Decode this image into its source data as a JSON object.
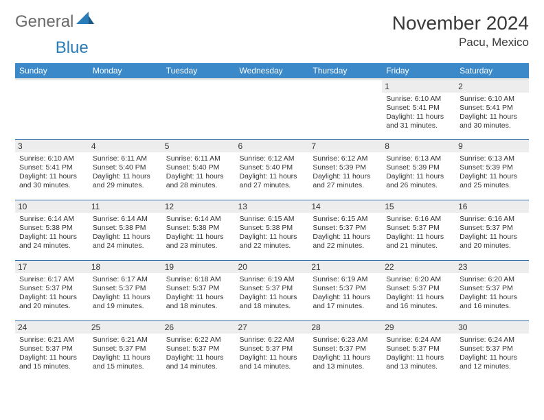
{
  "logo": {
    "general": "General",
    "blue": "Blue"
  },
  "title": "November 2024",
  "location": "Pacu, Mexico",
  "colors": {
    "header_bg": "#3b89c9",
    "header_text": "#ffffff",
    "row_border": "#2f6ea8",
    "daynum_bg": "#ededed"
  },
  "weekdays": [
    "Sunday",
    "Monday",
    "Tuesday",
    "Wednesday",
    "Thursday",
    "Friday",
    "Saturday"
  ],
  "weeks": [
    [
      {
        "day": "",
        "lines": []
      },
      {
        "day": "",
        "lines": []
      },
      {
        "day": "",
        "lines": []
      },
      {
        "day": "",
        "lines": []
      },
      {
        "day": "",
        "lines": []
      },
      {
        "day": "1",
        "lines": [
          "Sunrise: 6:10 AM",
          "Sunset: 5:41 PM",
          "Daylight: 11 hours and 31 minutes."
        ]
      },
      {
        "day": "2",
        "lines": [
          "Sunrise: 6:10 AM",
          "Sunset: 5:41 PM",
          "Daylight: 11 hours and 30 minutes."
        ]
      }
    ],
    [
      {
        "day": "3",
        "lines": [
          "Sunrise: 6:10 AM",
          "Sunset: 5:41 PM",
          "Daylight: 11 hours and 30 minutes."
        ]
      },
      {
        "day": "4",
        "lines": [
          "Sunrise: 6:11 AM",
          "Sunset: 5:40 PM",
          "Daylight: 11 hours and 29 minutes."
        ]
      },
      {
        "day": "5",
        "lines": [
          "Sunrise: 6:11 AM",
          "Sunset: 5:40 PM",
          "Daylight: 11 hours and 28 minutes."
        ]
      },
      {
        "day": "6",
        "lines": [
          "Sunrise: 6:12 AM",
          "Sunset: 5:40 PM",
          "Daylight: 11 hours and 27 minutes."
        ]
      },
      {
        "day": "7",
        "lines": [
          "Sunrise: 6:12 AM",
          "Sunset: 5:39 PM",
          "Daylight: 11 hours and 27 minutes."
        ]
      },
      {
        "day": "8",
        "lines": [
          "Sunrise: 6:13 AM",
          "Sunset: 5:39 PM",
          "Daylight: 11 hours and 26 minutes."
        ]
      },
      {
        "day": "9",
        "lines": [
          "Sunrise: 6:13 AM",
          "Sunset: 5:39 PM",
          "Daylight: 11 hours and 25 minutes."
        ]
      }
    ],
    [
      {
        "day": "10",
        "lines": [
          "Sunrise: 6:14 AM",
          "Sunset: 5:38 PM",
          "Daylight: 11 hours and 24 minutes."
        ]
      },
      {
        "day": "11",
        "lines": [
          "Sunrise: 6:14 AM",
          "Sunset: 5:38 PM",
          "Daylight: 11 hours and 24 minutes."
        ]
      },
      {
        "day": "12",
        "lines": [
          "Sunrise: 6:14 AM",
          "Sunset: 5:38 PM",
          "Daylight: 11 hours and 23 minutes."
        ]
      },
      {
        "day": "13",
        "lines": [
          "Sunrise: 6:15 AM",
          "Sunset: 5:38 PM",
          "Daylight: 11 hours and 22 minutes."
        ]
      },
      {
        "day": "14",
        "lines": [
          "Sunrise: 6:15 AM",
          "Sunset: 5:37 PM",
          "Daylight: 11 hours and 22 minutes."
        ]
      },
      {
        "day": "15",
        "lines": [
          "Sunrise: 6:16 AM",
          "Sunset: 5:37 PM",
          "Daylight: 11 hours and 21 minutes."
        ]
      },
      {
        "day": "16",
        "lines": [
          "Sunrise: 6:16 AM",
          "Sunset: 5:37 PM",
          "Daylight: 11 hours and 20 minutes."
        ]
      }
    ],
    [
      {
        "day": "17",
        "lines": [
          "Sunrise: 6:17 AM",
          "Sunset: 5:37 PM",
          "Daylight: 11 hours and 20 minutes."
        ]
      },
      {
        "day": "18",
        "lines": [
          "Sunrise: 6:17 AM",
          "Sunset: 5:37 PM",
          "Daylight: 11 hours and 19 minutes."
        ]
      },
      {
        "day": "19",
        "lines": [
          "Sunrise: 6:18 AM",
          "Sunset: 5:37 PM",
          "Daylight: 11 hours and 18 minutes."
        ]
      },
      {
        "day": "20",
        "lines": [
          "Sunrise: 6:19 AM",
          "Sunset: 5:37 PM",
          "Daylight: 11 hours and 18 minutes."
        ]
      },
      {
        "day": "21",
        "lines": [
          "Sunrise: 6:19 AM",
          "Sunset: 5:37 PM",
          "Daylight: 11 hours and 17 minutes."
        ]
      },
      {
        "day": "22",
        "lines": [
          "Sunrise: 6:20 AM",
          "Sunset: 5:37 PM",
          "Daylight: 11 hours and 16 minutes."
        ]
      },
      {
        "day": "23",
        "lines": [
          "Sunrise: 6:20 AM",
          "Sunset: 5:37 PM",
          "Daylight: 11 hours and 16 minutes."
        ]
      }
    ],
    [
      {
        "day": "24",
        "lines": [
          "Sunrise: 6:21 AM",
          "Sunset: 5:37 PM",
          "Daylight: 11 hours and 15 minutes."
        ]
      },
      {
        "day": "25",
        "lines": [
          "Sunrise: 6:21 AM",
          "Sunset: 5:37 PM",
          "Daylight: 11 hours and 15 minutes."
        ]
      },
      {
        "day": "26",
        "lines": [
          "Sunrise: 6:22 AM",
          "Sunset: 5:37 PM",
          "Daylight: 11 hours and 14 minutes."
        ]
      },
      {
        "day": "27",
        "lines": [
          "Sunrise: 6:22 AM",
          "Sunset: 5:37 PM",
          "Daylight: 11 hours and 14 minutes."
        ]
      },
      {
        "day": "28",
        "lines": [
          "Sunrise: 6:23 AM",
          "Sunset: 5:37 PM",
          "Daylight: 11 hours and 13 minutes."
        ]
      },
      {
        "day": "29",
        "lines": [
          "Sunrise: 6:24 AM",
          "Sunset: 5:37 PM",
          "Daylight: 11 hours and 13 minutes."
        ]
      },
      {
        "day": "30",
        "lines": [
          "Sunrise: 6:24 AM",
          "Sunset: 5:37 PM",
          "Daylight: 11 hours and 12 minutes."
        ]
      }
    ]
  ]
}
